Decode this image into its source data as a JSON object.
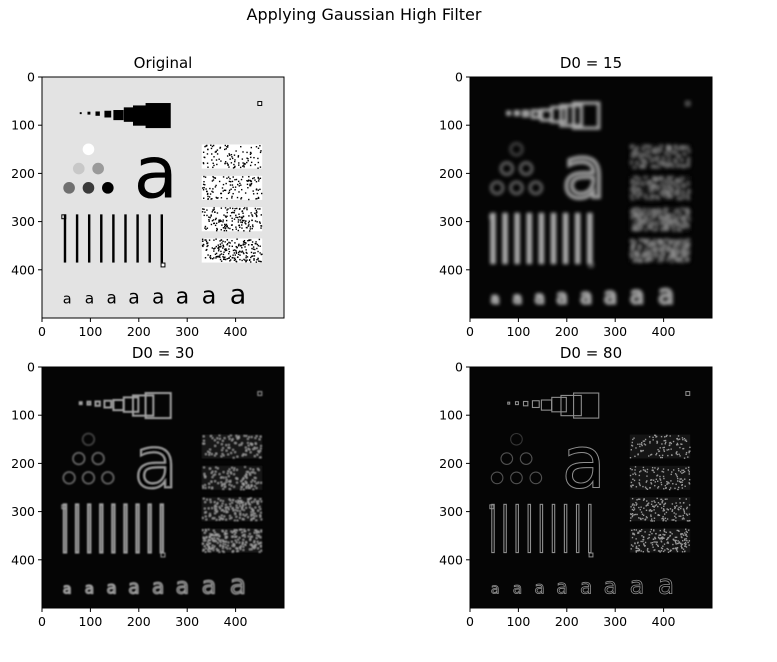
{
  "figure": {
    "suptitle": "Applying Gaussian High Filter"
  },
  "chart_data": [
    {
      "type": "image",
      "title": "Original",
      "variant": "original",
      "xlim": [
        0,
        500
      ],
      "ylim": [
        500,
        0
      ],
      "xticks": [
        0,
        100,
        200,
        300,
        400
      ],
      "yticks": [
        0,
        100,
        200,
        300,
        400
      ],
      "grid": false
    },
    {
      "type": "image",
      "title": "D0 = 15",
      "variant": "filtered",
      "cutoff": 15,
      "xlim": [
        0,
        500
      ],
      "ylim": [
        500,
        0
      ],
      "xticks": [
        0,
        100,
        200,
        300,
        400
      ],
      "yticks": [
        0,
        100,
        200,
        300,
        400
      ],
      "grid": false
    },
    {
      "type": "image",
      "title": "D0 = 30",
      "variant": "filtered",
      "cutoff": 30,
      "xlim": [
        0,
        500
      ],
      "ylim": [
        500,
        0
      ],
      "xticks": [
        0,
        100,
        200,
        300,
        400
      ],
      "yticks": [
        0,
        100,
        200,
        300,
        400
      ],
      "grid": false
    },
    {
      "type": "image",
      "title": "D0 = 80",
      "variant": "filtered",
      "cutoff": 80,
      "xlim": [
        0,
        500
      ],
      "ylim": [
        500,
        0
      ],
      "xticks": [
        0,
        100,
        200,
        300,
        400
      ],
      "yticks": [
        0,
        100,
        200,
        300,
        400
      ],
      "grid": false
    }
  ],
  "test_pattern": {
    "letter": "a",
    "colors": {
      "background_original": "#e3e3e3",
      "background_filtered": "#050505",
      "edge_bright": "#c8c8c8",
      "ink": "#000000"
    }
  }
}
